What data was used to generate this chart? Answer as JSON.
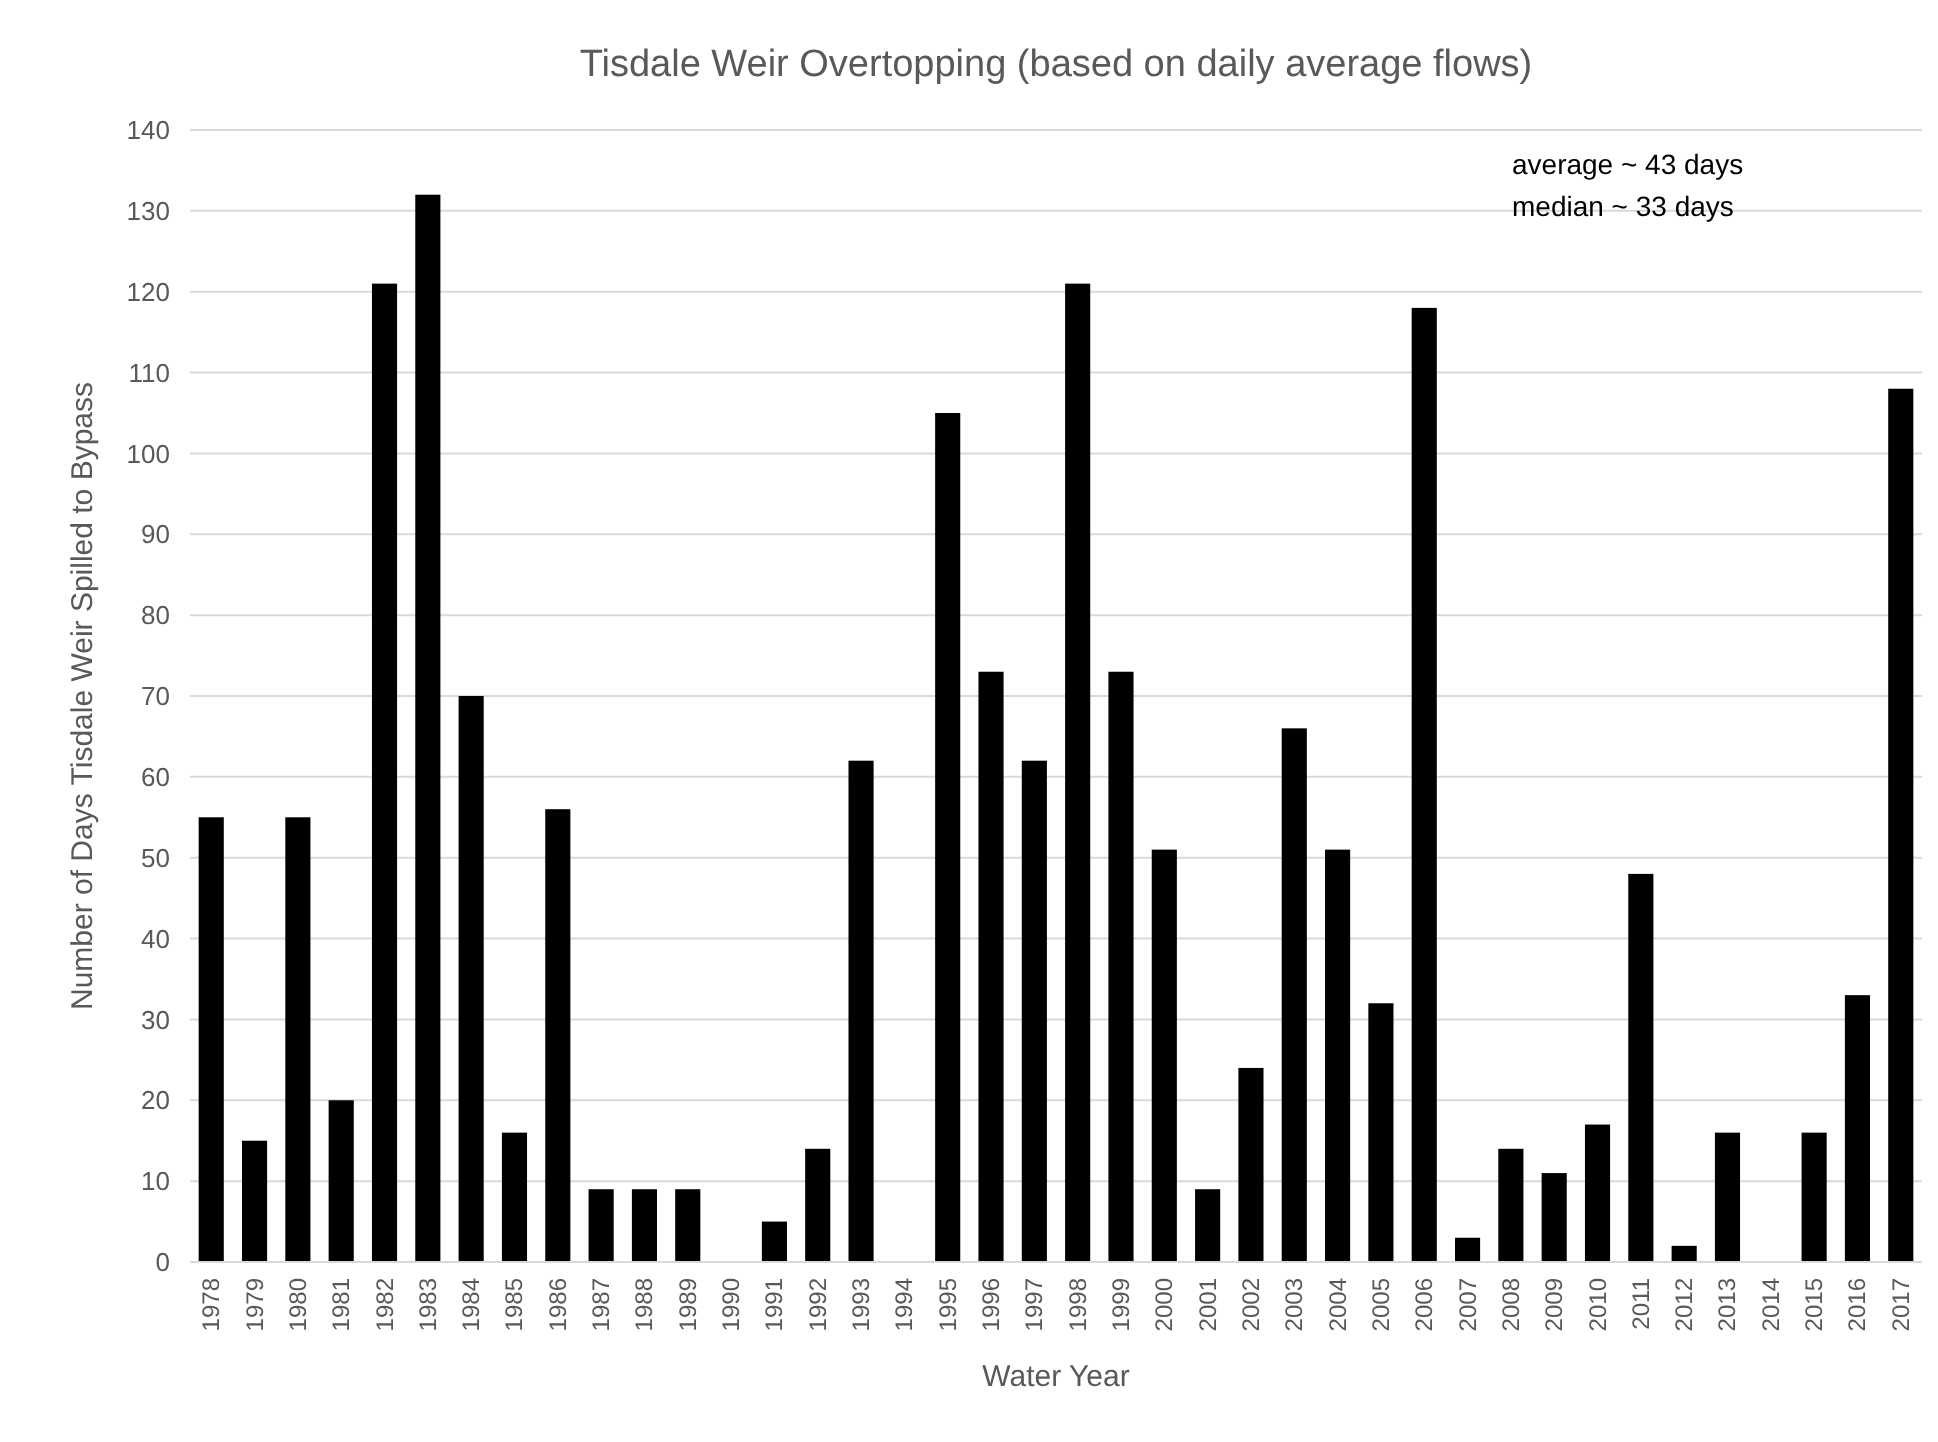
{
  "chart_data": {
    "type": "bar",
    "title": "Tisdale Weir Overtopping (based on daily average flows)",
    "xlabel": "Water Year",
    "ylabel": "Number of Days Tisdale Weir Spilled to Bypass",
    "categories": [
      "1978",
      "1979",
      "1980",
      "1981",
      "1982",
      "1983",
      "1984",
      "1985",
      "1986",
      "1987",
      "1988",
      "1989",
      "1990",
      "1991",
      "1992",
      "1993",
      "1994",
      "1995",
      "1996",
      "1997",
      "1998",
      "1999",
      "2000",
      "2001",
      "2002",
      "2003",
      "2004",
      "2005",
      "2006",
      "2007",
      "2008",
      "2009",
      "2010",
      "2011",
      "2012",
      "2013",
      "2014",
      "2015",
      "2016",
      "2017"
    ],
    "values": [
      55,
      15,
      55,
      20,
      121,
      132,
      70,
      16,
      56,
      9,
      9,
      9,
      0,
      5,
      14,
      62,
      0,
      105,
      73,
      62,
      121,
      73,
      51,
      9,
      24,
      66,
      51,
      32,
      118,
      3,
      14,
      11,
      17,
      48,
      2,
      16,
      0,
      16,
      33,
      108
    ],
    "color": "#000000",
    "ylim": [
      0,
      140
    ],
    "yticks": [
      0,
      10,
      20,
      30,
      40,
      50,
      60,
      70,
      80,
      90,
      100,
      110,
      120,
      130,
      140
    ],
    "grid": "y",
    "annotations": [
      "average ~ 43 days",
      "median ~ 33 days"
    ]
  }
}
